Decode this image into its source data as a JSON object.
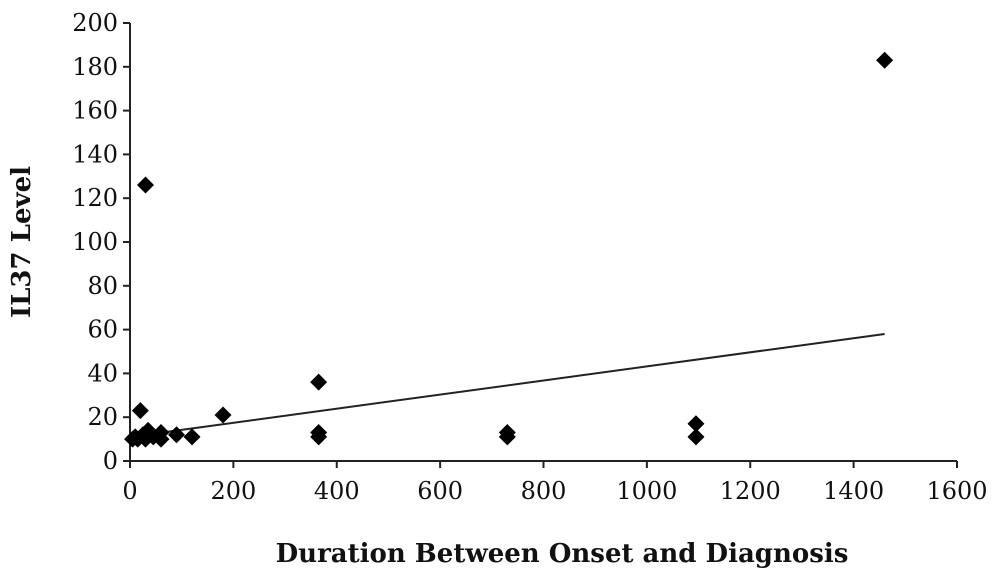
{
  "chart_data": {
    "type": "scatter",
    "xlabel": "Duration Between Onset and Diagnosis",
    "ylabel": "IL37 Level",
    "xlim": [
      0,
      1600
    ],
    "ylim": [
      0,
      200
    ],
    "xticks": [
      0,
      200,
      400,
      600,
      800,
      1000,
      1200,
      1400,
      1600
    ],
    "yticks": [
      0,
      20,
      40,
      60,
      80,
      100,
      120,
      140,
      160,
      180,
      200
    ],
    "grid": false,
    "marker": "diamond",
    "colors": {
      "points": "#000000",
      "trendline": "#222222"
    },
    "points": [
      {
        "x": 5,
        "y": 10
      },
      {
        "x": 10,
        "y": 11
      },
      {
        "x": 15,
        "y": 10
      },
      {
        "x": 20,
        "y": 23
      },
      {
        "x": 25,
        "y": 12
      },
      {
        "x": 30,
        "y": 10
      },
      {
        "x": 30,
        "y": 126
      },
      {
        "x": 35,
        "y": 14
      },
      {
        "x": 45,
        "y": 11
      },
      {
        "x": 60,
        "y": 10
      },
      {
        "x": 60,
        "y": 13
      },
      {
        "x": 90,
        "y": 12
      },
      {
        "x": 120,
        "y": 11
      },
      {
        "x": 180,
        "y": 21
      },
      {
        "x": 365,
        "y": 36
      },
      {
        "x": 365,
        "y": 13
      },
      {
        "x": 365,
        "y": 11
      },
      {
        "x": 730,
        "y": 13
      },
      {
        "x": 730,
        "y": 11
      },
      {
        "x": 1095,
        "y": 17
      },
      {
        "x": 1095,
        "y": 11
      },
      {
        "x": 1460,
        "y": 183
      }
    ],
    "trendline": {
      "type": "linear",
      "x": [
        0,
        1460
      ],
      "y": [
        11,
        58
      ]
    }
  }
}
